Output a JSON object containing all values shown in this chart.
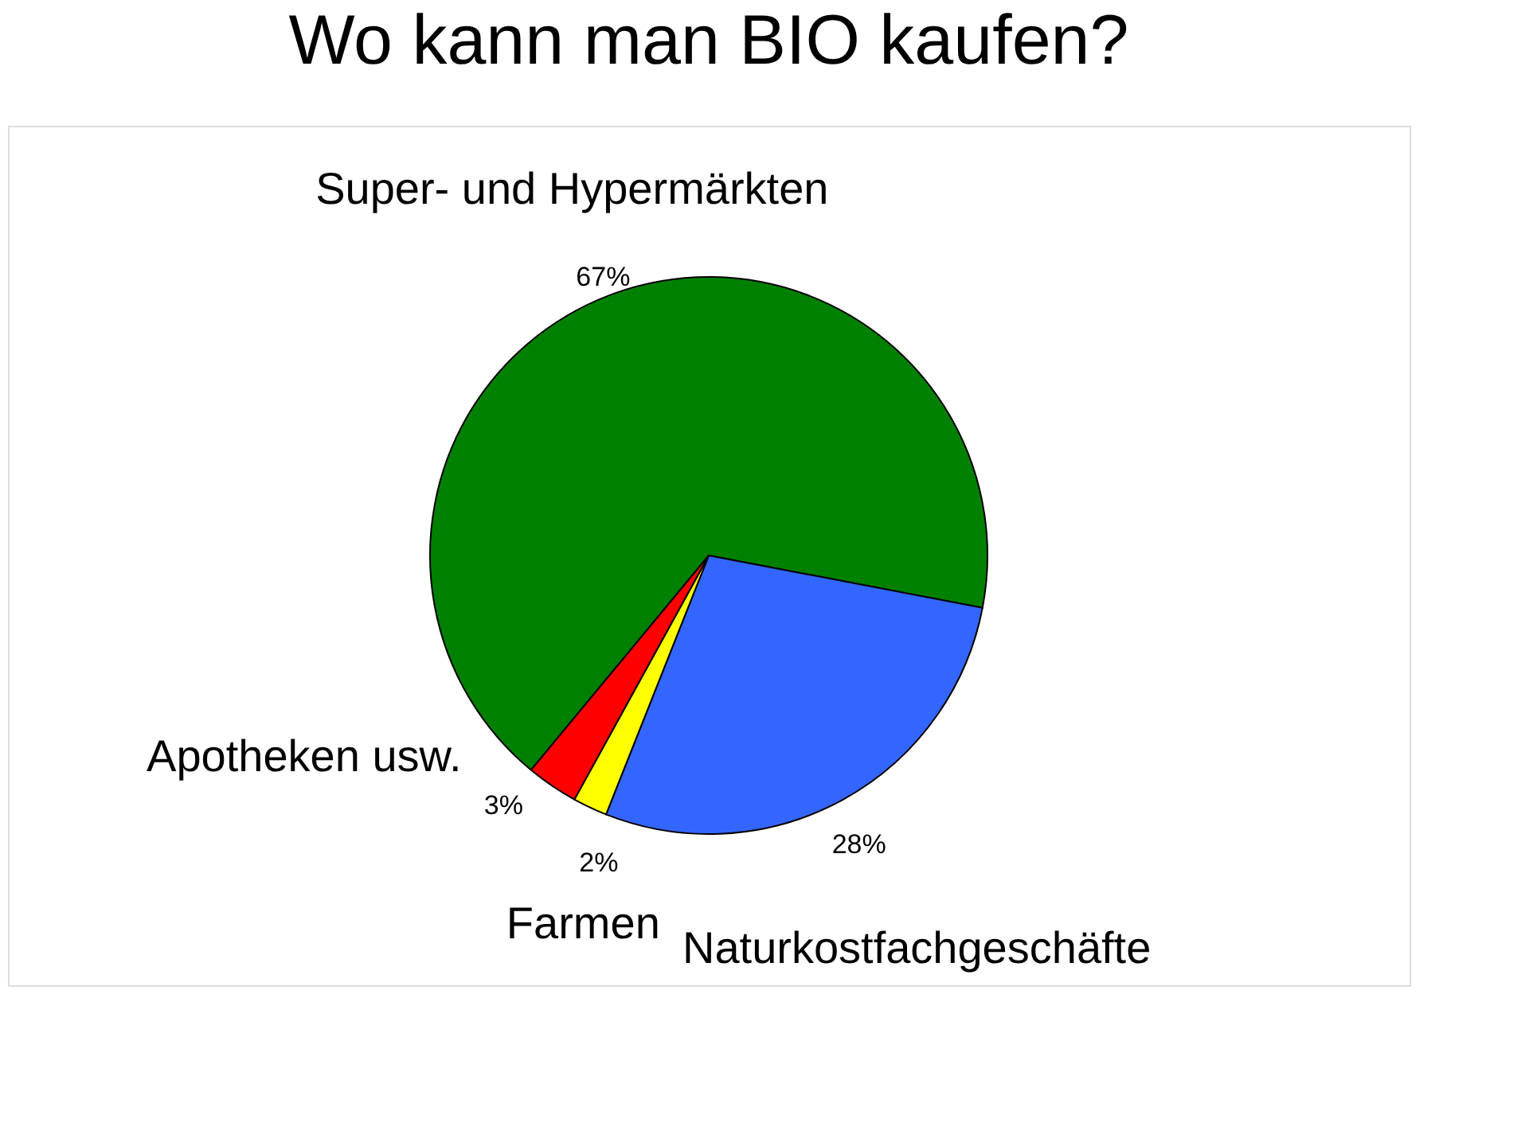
{
  "chart_data": {
    "type": "pie",
    "title": "Wo kann man BIO kaufen?",
    "categories": [
      "Super- und Hypermärkten",
      "Naturkostfachgeschäfte",
      "Farmen",
      "Apotheken usw."
    ],
    "values": [
      67,
      28,
      2,
      3
    ],
    "colors": [
      "#008000",
      "#3366ff",
      "#ffff00",
      "#ff0000"
    ],
    "value_labels": [
      "67%",
      "28%",
      "2%",
      "3%"
    ]
  }
}
